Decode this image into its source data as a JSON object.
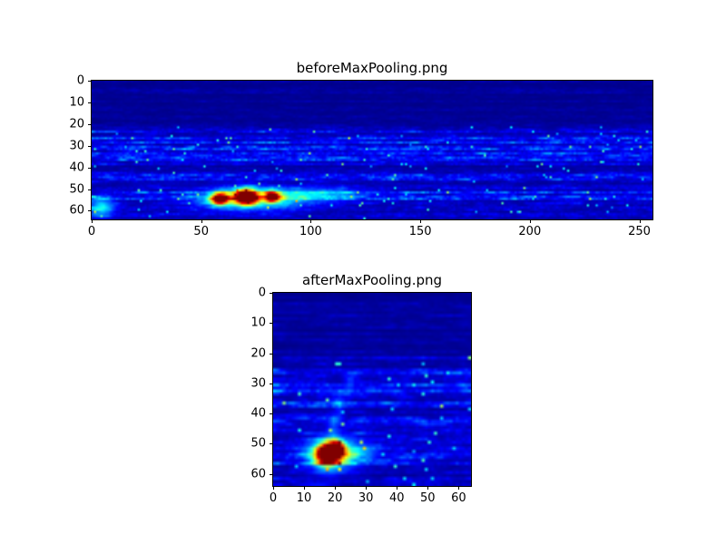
{
  "figure": {
    "background": "#ffffff",
    "axis_color": "#000000",
    "text_color": "#000000"
  },
  "chart_data": [
    {
      "type": "heatmap",
      "title": "beforeMaxPooling.png",
      "colormap": "jet",
      "x_range": [
        0,
        256
      ],
      "y_range": [
        0,
        64
      ],
      "x_ticks": [
        "0",
        "50",
        "100",
        "150",
        "200",
        "250"
      ],
      "x_tick_values": [
        0,
        50,
        100,
        150,
        200,
        250
      ],
      "y_ticks": [
        "0",
        "10",
        "20",
        "30",
        "40",
        "50",
        "60"
      ],
      "y_tick_values": [
        0,
        10,
        20,
        30,
        40,
        50,
        60
      ],
      "grid": {
        "cols": 256,
        "rows": 64
      },
      "seed": 42,
      "background_value": 0.045,
      "bands": [
        [
          0,
          21,
          0.045
        ],
        [
          21,
          25,
          0.14
        ],
        [
          25,
          31,
          0.19
        ],
        [
          31,
          38,
          0.23
        ],
        [
          38,
          41,
          0.12
        ],
        [
          41,
          47,
          0.17
        ],
        [
          47,
          51,
          0.13
        ],
        [
          51,
          57,
          0.19
        ],
        [
          57,
          64,
          0.1
        ]
      ],
      "hotspots": [
        {
          "x": 58,
          "y": 54,
          "sx": 2.6,
          "sy": 1.9,
          "amp": 1.05
        },
        {
          "x": 70,
          "y": 53,
          "sx": 3.6,
          "sy": 2.4,
          "amp": 1.15
        },
        {
          "x": 82,
          "y": 53,
          "sx": 2.2,
          "sy": 1.7,
          "amp": 0.95
        },
        {
          "x": 72,
          "y": 54,
          "sx": 16.0,
          "sy": 3.2,
          "amp": 0.4
        },
        {
          "x": 103,
          "y": 52,
          "sx": 14.0,
          "sy": 2.2,
          "amp": 0.22
        },
        {
          "x": 4,
          "y": 58,
          "sx": 4.0,
          "sy": 3.0,
          "amp": 0.33
        }
      ]
    },
    {
      "type": "heatmap",
      "title": "afterMaxPooling.png",
      "colormap": "jet",
      "x_range": [
        0,
        64
      ],
      "y_range": [
        0,
        64
      ],
      "x_ticks": [
        "0",
        "10",
        "20",
        "30",
        "40",
        "50",
        "60"
      ],
      "x_tick_values": [
        0,
        10,
        20,
        30,
        40,
        50,
        60
      ],
      "y_ticks": [
        "0",
        "10",
        "20",
        "30",
        "40",
        "50",
        "60"
      ],
      "y_tick_values": [
        0,
        10,
        20,
        30,
        40,
        50,
        60
      ],
      "grid": {
        "cols": 64,
        "rows": 64
      },
      "seed": 7,
      "background_value": 0.05,
      "bands": [
        [
          0,
          21,
          0.05
        ],
        [
          21,
          25,
          0.13
        ],
        [
          25,
          31,
          0.18
        ],
        [
          31,
          38,
          0.22
        ],
        [
          38,
          41,
          0.12
        ],
        [
          41,
          47,
          0.16
        ],
        [
          47,
          51,
          0.12
        ],
        [
          51,
          57,
          0.18
        ],
        [
          57,
          64,
          0.1
        ]
      ],
      "hotspots": [
        {
          "x": 17,
          "y": 53,
          "sx": 2.4,
          "sy": 2.4,
          "amp": 1.15
        },
        {
          "x": 20,
          "y": 51,
          "sx": 1.8,
          "sy": 1.8,
          "amp": 0.8
        },
        {
          "x": 18,
          "y": 53,
          "sx": 5.0,
          "sy": 3.4,
          "amp": 0.45
        },
        {
          "x": 26,
          "y": 52,
          "sx": 5.0,
          "sy": 2.0,
          "amp": 0.2
        },
        {
          "x": 24,
          "y": 30,
          "sx": 1.2,
          "sy": 3.0,
          "amp": 0.1
        },
        {
          "x": 21,
          "y": 37,
          "sx": 1.2,
          "sy": 3.0,
          "amp": 0.12
        },
        {
          "x": 19,
          "y": 44,
          "sx": 1.2,
          "sy": 3.0,
          "amp": 0.12
        }
      ]
    }
  ]
}
